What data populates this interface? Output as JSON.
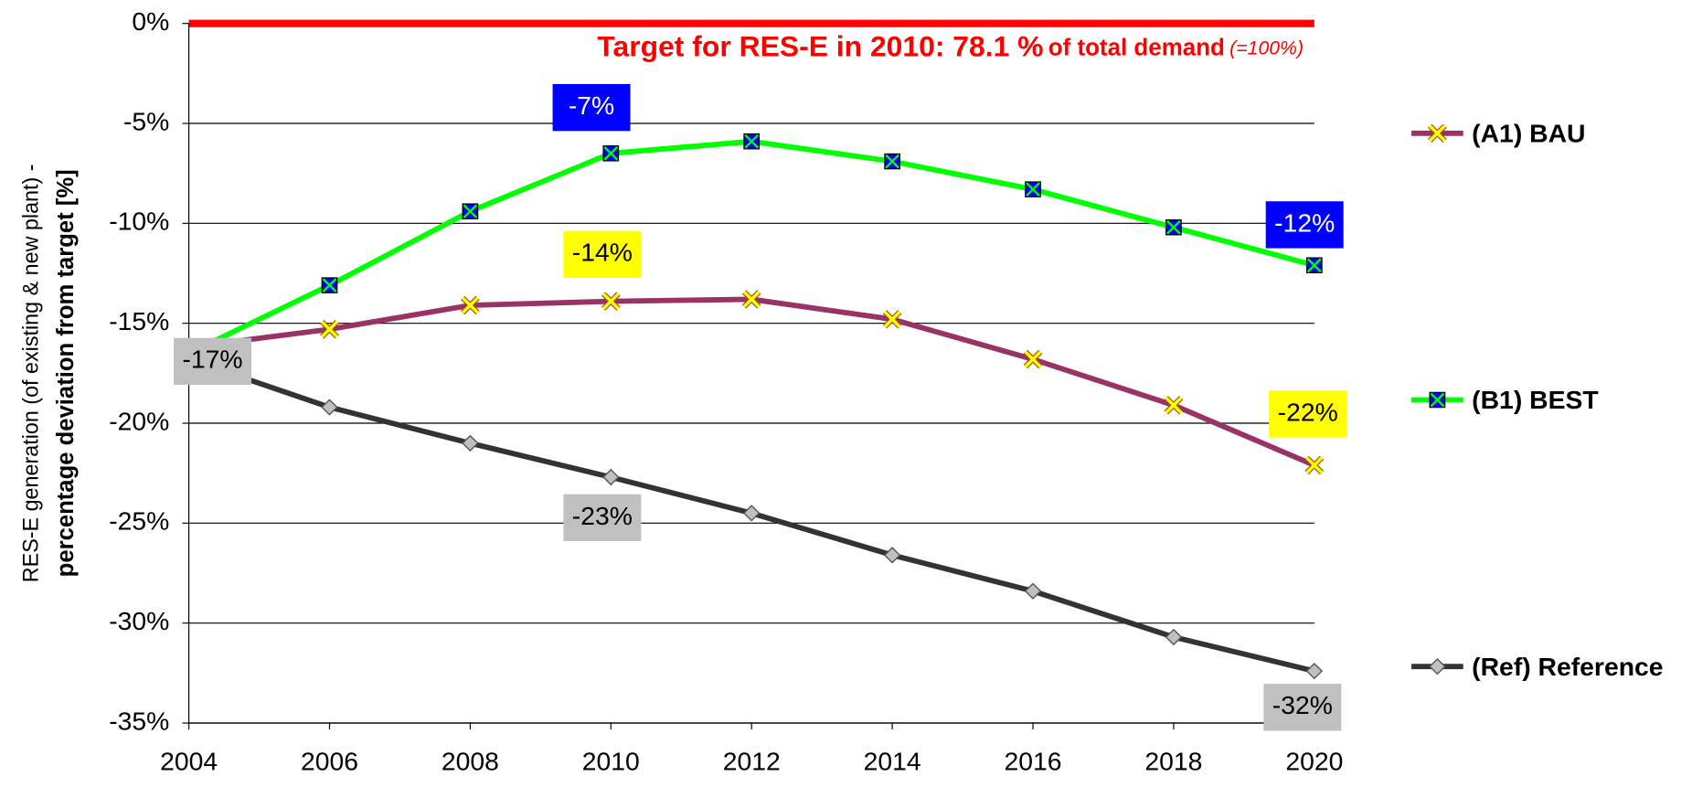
{
  "chart_data": {
    "type": "line",
    "y_axis_label": [
      "RES-E generation (of existing & new plant) -",
      "percentage deviation from target [%]"
    ],
    "target_annotation": [
      "Target for RES-E in 2010: 78.1 %",
      "of total demand",
      "(=100%)"
    ],
    "target_color": "#ff0000",
    "x": [
      2004,
      2006,
      2008,
      2010,
      2012,
      2014,
      2016,
      2018,
      2020
    ],
    "xlim": [
      2004,
      2020
    ],
    "xticks": [
      2004,
      2006,
      2008,
      2010,
      2012,
      2014,
      2016,
      2018,
      2020
    ],
    "ylim": [
      -35,
      0
    ],
    "yticks": [
      {
        "value": 0,
        "label": "0%"
      },
      {
        "value": -5,
        "label": "-5%"
      },
      {
        "value": -10,
        "label": "-10%"
      },
      {
        "value": -15,
        "label": "-15%"
      },
      {
        "value": -20,
        "label": "-20%"
      },
      {
        "value": -25,
        "label": "-25%"
      },
      {
        "value": -30,
        "label": "-30%"
      },
      {
        "value": -35,
        "label": "-35%"
      }
    ],
    "grid": true,
    "legend": "right",
    "series": [
      {
        "name": "(A1) BAU",
        "color": "#993366",
        "marker": "x",
        "marker_color": "#ffff00",
        "label_bg": "#ffff00",
        "label_color": "#000000",
        "values": [
          -16.2,
          -15.3,
          -14.1,
          -13.9,
          -13.8,
          -14.8,
          -16.8,
          -19.1,
          -22.1
        ],
        "value_labels": [
          null,
          null,
          null,
          "-14%",
          null,
          null,
          null,
          null,
          "-22%"
        ]
      },
      {
        "name": "(B1) BEST",
        "color": "#00ff00",
        "marker": "square-x",
        "marker_color": "#0000ff",
        "label_bg": "#0000ff",
        "label_color": "#ffffff",
        "values": [
          -16.5,
          -13.1,
          -9.4,
          -6.5,
          -5.9,
          -6.9,
          -8.3,
          -10.2,
          -12.1
        ],
        "value_labels": [
          null,
          null,
          null,
          "-7%",
          null,
          null,
          null,
          null,
          "-12%"
        ]
      },
      {
        "name": "(Ref) Reference",
        "color": "#333333",
        "marker": "diamond",
        "marker_color": "#c0c0c0",
        "label_bg": "#c0c0c0",
        "label_color": "#000000",
        "values": [
          -16.8,
          -19.2,
          -21.0,
          -22.7,
          -24.5,
          -26.6,
          -28.4,
          -30.7,
          -32.4
        ],
        "value_labels": [
          "-17%",
          null,
          null,
          "-23%",
          null,
          null,
          null,
          null,
          "-32%"
        ]
      }
    ]
  }
}
